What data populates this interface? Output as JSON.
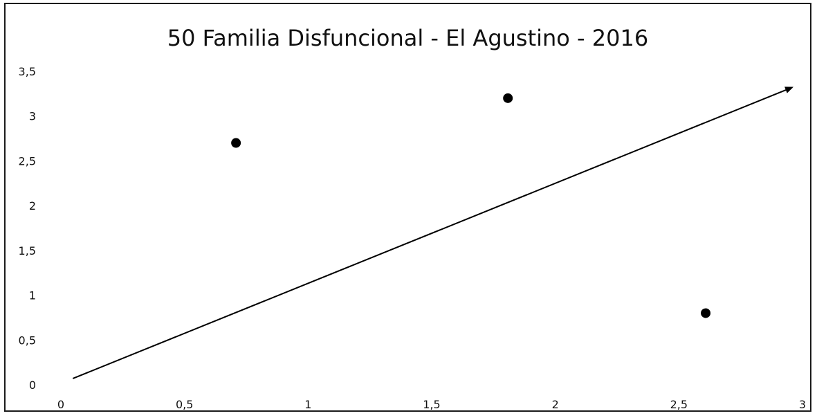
{
  "chart_data": {
    "type": "scatter",
    "title": "50 Familia Disfuncional - El Agustino -  2016",
    "xlabel": "",
    "ylabel": "",
    "xlim": [
      0,
      3
    ],
    "ylim": [
      0,
      3.5
    ],
    "x_ticks": [
      "0",
      "0,5",
      "1",
      "1,5",
      "2",
      "2,5",
      "3"
    ],
    "y_ticks": [
      "0",
      "0,5",
      "1",
      "1,5",
      "2",
      "2,5",
      "3",
      "3,5"
    ],
    "grid": false,
    "legend": "none",
    "series": [
      {
        "points": [
          {
            "x": 0.7,
            "y": 2.7
          },
          {
            "x": 1.8,
            "y": 3.2
          },
          {
            "x": 2.6,
            "y": 0.8
          }
        ]
      }
    ],
    "arrow": {
      "from": [
        0.04,
        0.07
      ],
      "to": [
        2.95,
        3.32
      ]
    },
    "colors": {
      "marker": "#000000",
      "arrow": "#000000",
      "text": "#111111"
    }
  }
}
